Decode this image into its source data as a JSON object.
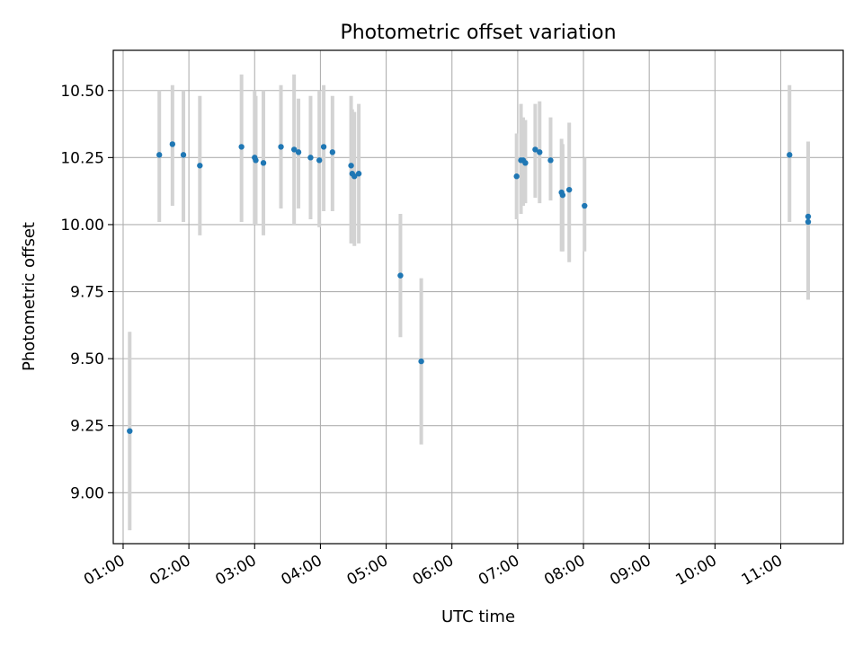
{
  "chart_data": {
    "type": "scatter",
    "title": "Photometric offset variation",
    "xlabel": "UTC time",
    "ylabel": "Photometric offset",
    "x_unit": "UTC time (HH:MM)",
    "xlim": [
      "00:51",
      "11:57"
    ],
    "ylim": [
      8.81,
      10.65
    ],
    "grid": true,
    "colors": {
      "points": "#1f77b4",
      "errorbars": "#d3d3d3",
      "grid": "#b0b0b0",
      "axes": "#000000"
    },
    "x_ticks": [
      "01:00",
      "02:00",
      "03:00",
      "04:00",
      "05:00",
      "06:00",
      "07:00",
      "08:00",
      "09:00",
      "10:00",
      "11:00"
    ],
    "y_ticks": [
      "9.00",
      "9.25",
      "9.50",
      "9.75",
      "10.00",
      "10.25",
      "10.50"
    ],
    "points": [
      {
        "x": "01:06",
        "y": 9.23,
        "ylo": 8.86,
        "yhi": 9.6
      },
      {
        "x": "01:33",
        "y": 10.26,
        "ylo": 10.01,
        "yhi": 10.5
      },
      {
        "x": "01:45",
        "y": 10.3,
        "ylo": 10.07,
        "yhi": 10.52
      },
      {
        "x": "01:55",
        "y": 10.26,
        "ylo": 10.01,
        "yhi": 10.5
      },
      {
        "x": "02:10",
        "y": 10.22,
        "ylo": 9.96,
        "yhi": 10.48
      },
      {
        "x": "02:48",
        "y": 10.29,
        "ylo": 10.01,
        "yhi": 10.56
      },
      {
        "x": "03:00",
        "y": 10.25,
        "ylo": 10.0,
        "yhi": 10.5
      },
      {
        "x": "03:01",
        "y": 10.24,
        "ylo": 10.0,
        "yhi": 10.48
      },
      {
        "x": "03:08",
        "y": 10.23,
        "ylo": 9.96,
        "yhi": 10.5
      },
      {
        "x": "03:24",
        "y": 10.29,
        "ylo": 10.06,
        "yhi": 10.52
      },
      {
        "x": "03:36",
        "y": 10.28,
        "ylo": 10.0,
        "yhi": 10.56
      },
      {
        "x": "03:40",
        "y": 10.27,
        "ylo": 10.06,
        "yhi": 10.47
      },
      {
        "x": "03:51",
        "y": 10.25,
        "ylo": 10.02,
        "yhi": 10.48
      },
      {
        "x": "03:59",
        "y": 10.24,
        "ylo": 9.99,
        "yhi": 10.5
      },
      {
        "x": "04:03",
        "y": 10.29,
        "ylo": 10.05,
        "yhi": 10.52
      },
      {
        "x": "04:11",
        "y": 10.27,
        "ylo": 10.05,
        "yhi": 10.48
      },
      {
        "x": "04:28",
        "y": 10.22,
        "ylo": 9.93,
        "yhi": 10.48
      },
      {
        "x": "04:29",
        "y": 10.19,
        "ylo": 9.93,
        "yhi": 10.43
      },
      {
        "x": "04:31",
        "y": 10.18,
        "ylo": 9.92,
        "yhi": 10.42
      },
      {
        "x": "04:35",
        "y": 10.19,
        "ylo": 9.93,
        "yhi": 10.45
      },
      {
        "x": "05:13",
        "y": 9.81,
        "ylo": 9.58,
        "yhi": 10.04
      },
      {
        "x": "05:32",
        "y": 9.49,
        "ylo": 9.18,
        "yhi": 9.8
      },
      {
        "x": "06:59",
        "y": 10.18,
        "ylo": 10.02,
        "yhi": 10.34
      },
      {
        "x": "07:03",
        "y": 10.24,
        "ylo": 10.04,
        "yhi": 10.45
      },
      {
        "x": "07:05",
        "y": 10.24,
        "ylo": 10.07,
        "yhi": 10.4
      },
      {
        "x": "07:07",
        "y": 10.23,
        "ylo": 10.08,
        "yhi": 10.39
      },
      {
        "x": "07:16",
        "y": 10.28,
        "ylo": 10.1,
        "yhi": 10.45
      },
      {
        "x": "07:20",
        "y": 10.27,
        "ylo": 10.08,
        "yhi": 10.46
      },
      {
        "x": "07:30",
        "y": 10.24,
        "ylo": 10.09,
        "yhi": 10.4
      },
      {
        "x": "07:40",
        "y": 10.12,
        "ylo": 9.9,
        "yhi": 10.32
      },
      {
        "x": "07:41",
        "y": 10.11,
        "ylo": 9.9,
        "yhi": 10.3
      },
      {
        "x": "07:47",
        "y": 10.13,
        "ylo": 9.86,
        "yhi": 10.38
      },
      {
        "x": "08:01",
        "y": 10.07,
        "ylo": 9.9,
        "yhi": 10.25
      },
      {
        "x": "11:08",
        "y": 10.26,
        "ylo": 10.01,
        "yhi": 10.52
      },
      {
        "x": "11:25",
        "y": 10.03,
        "ylo": 9.74,
        "yhi": 10.31
      },
      {
        "x": "11:25",
        "y": 10.01,
        "ylo": 9.72,
        "yhi": 10.3
      }
    ]
  }
}
